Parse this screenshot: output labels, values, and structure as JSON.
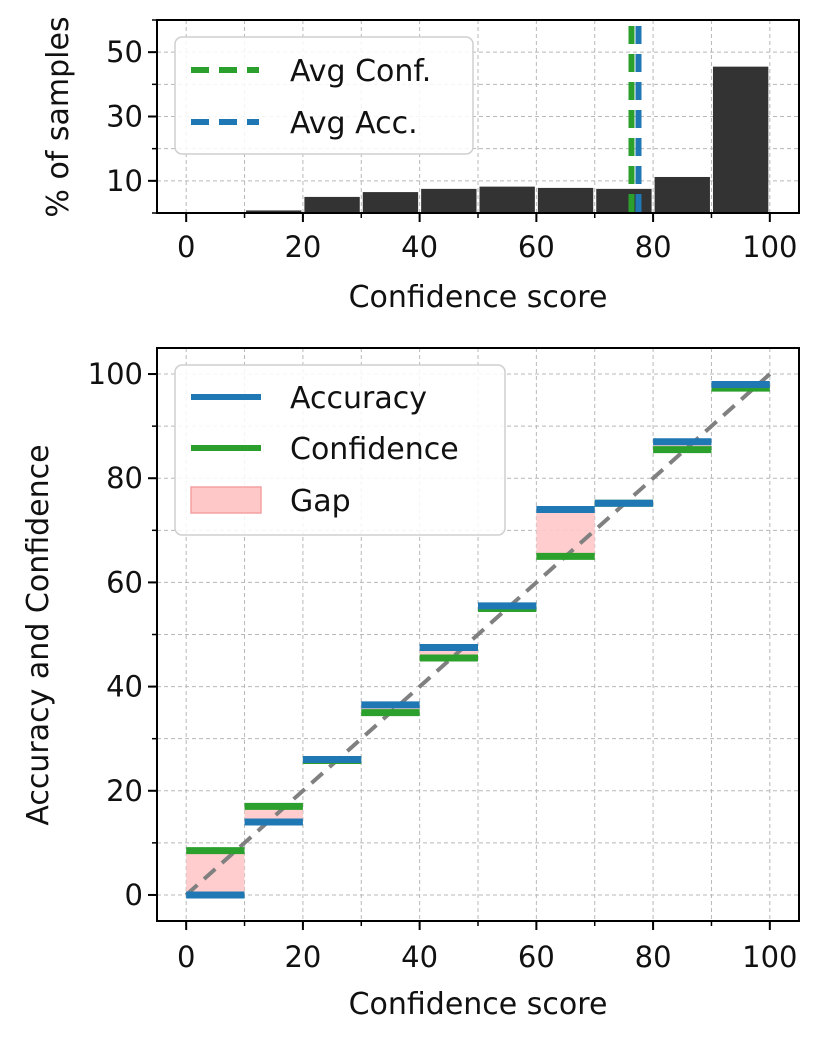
{
  "chart_data": [
    {
      "type": "bar",
      "title": "",
      "xlabel": "Confidence score",
      "ylabel": "% of samples",
      "xlim": [
        -5,
        105
      ],
      "ylim": [
        0,
        60
      ],
      "x_ticks": [
        "0",
        "20",
        "40",
        "60",
        "80",
        "100"
      ],
      "y_ticks": [
        "10",
        "30",
        "50"
      ],
      "bin_edges": [
        0,
        10,
        20,
        30,
        40,
        50,
        60,
        70,
        80,
        90,
        100
      ],
      "values": [
        0.1,
        0.8,
        5.0,
        6.5,
        7.5,
        8.2,
        7.8,
        7.5,
        11.2,
        45.5
      ],
      "bar_color": "#333333",
      "vlines": [
        {
          "name": "Avg Conf.",
          "x": 76.3,
          "color": "#2ca02c"
        },
        {
          "name": "Avg Acc.",
          "x": 77.5,
          "color": "#1f77b4"
        }
      ],
      "legend": {
        "entries": [
          "Avg Conf.",
          "Avg Acc."
        ],
        "position": "upper-left"
      },
      "grid": true
    },
    {
      "type": "reliability",
      "title": "",
      "xlabel": "Confidence score",
      "ylabel": "Accuracy and Confidence",
      "xlim": [
        -5,
        105
      ],
      "ylim": [
        -5,
        105
      ],
      "x_ticks": [
        "0",
        "20",
        "40",
        "60",
        "80",
        "100"
      ],
      "y_ticks": [
        "0",
        "20",
        "40",
        "60",
        "80",
        "100"
      ],
      "bin_edges": [
        0,
        10,
        20,
        30,
        40,
        50,
        60,
        70,
        80,
        90,
        100
      ],
      "series": [
        {
          "name": "Accuracy",
          "color": "#1f77b4",
          "values": [
            0,
            14,
            26,
            36.5,
            47.5,
            55.5,
            74,
            75.2,
            87,
            98
          ]
        },
        {
          "name": "Confidence",
          "color": "#2ca02c",
          "values": [
            8.5,
            17,
            25.8,
            35,
            45.5,
            55,
            65,
            75.2,
            85.5,
            97.3
          ]
        }
      ],
      "gap": {
        "name": "Gap",
        "color": "#ffc8c8"
      },
      "diagonal": {
        "from": [
          0,
          0
        ],
        "to": [
          100,
          100
        ],
        "color": "#808080"
      },
      "legend": {
        "entries": [
          "Accuracy",
          "Confidence",
          "Gap"
        ],
        "position": "upper-left"
      },
      "grid": true
    }
  ]
}
